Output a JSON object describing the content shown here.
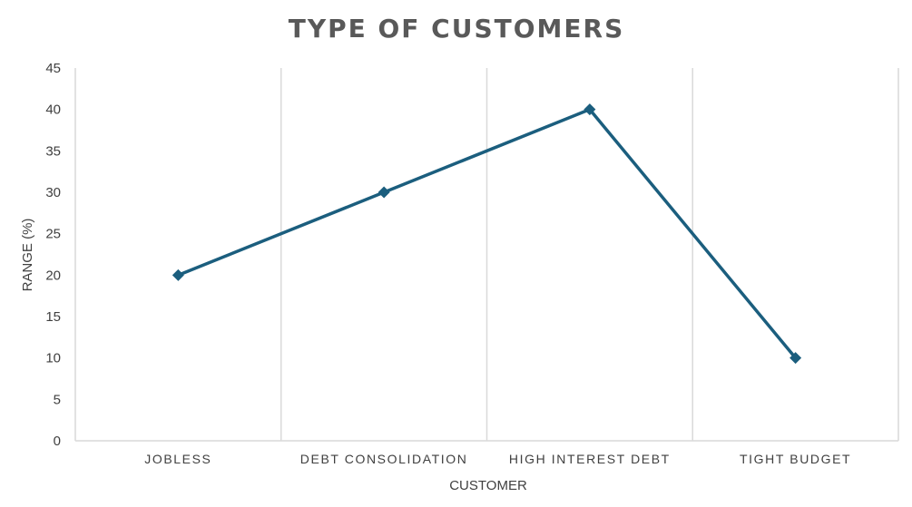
{
  "chart_data": {
    "type": "line",
    "title": "TYPE OF CUSTOMERS",
    "xlabel": "CUSTOMER",
    "ylabel": "RANGE (%)",
    "categories": [
      "JOBLESS",
      "DEBT CONSOLIDATION",
      "HIGH INTEREST DEBT",
      "TIGHT BUDGET"
    ],
    "series": [
      {
        "values": [
          20,
          30,
          40,
          10
        ],
        "color": "#1b5e7e",
        "marker": "diamond"
      }
    ],
    "ylim": [
      0,
      45
    ],
    "yticks": [
      0,
      5,
      10,
      15,
      20,
      25,
      30,
      35,
      40,
      45
    ],
    "grid": "vertical category separators",
    "legend": "none"
  }
}
